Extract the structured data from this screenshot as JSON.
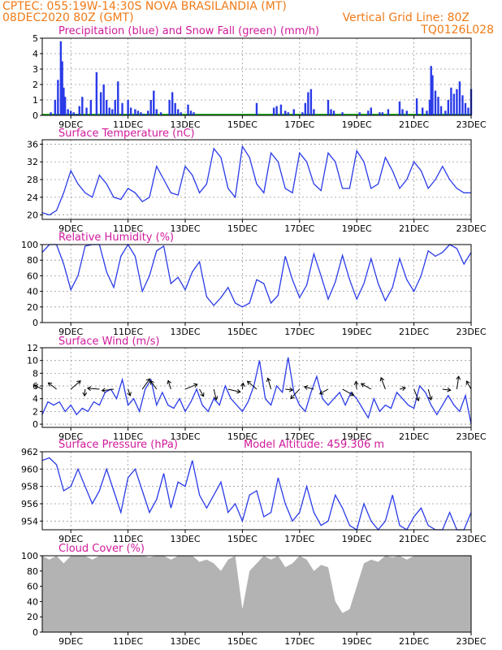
{
  "header": {
    "left_line1": "CPTEC:  055:19W-14:30S  NOVA BRASILANDIA (MT)",
    "left_line2": "08DEC2020 80Z (GMT)",
    "right_line1": "Vertical Grid Line: 80Z",
    "right_line2": "TQ0126L028"
  },
  "x_axis": {
    "ticks": [
      "9DEC",
      "11DEC",
      "13DEC",
      "15DEC",
      "17DEC",
      "19DEC",
      "21DEC",
      "23DEC"
    ]
  },
  "colors": {
    "header": "#f07b18",
    "titles": "#d01a9a",
    "line": "#2a3be8",
    "snow": "#22aa22",
    "cloud": "#b3b3b3"
  },
  "chart_data": [
    {
      "id": "precip",
      "type": "bar",
      "title": "Precipitation (blue) and Snow Fall (green) (mm/h)",
      "ylim": [
        0,
        5
      ],
      "yticks": [
        0,
        1,
        2,
        3,
        4,
        5
      ],
      "grid": true,
      "series": [
        {
          "x": [
            8.3,
            8.45,
            8.55,
            8.65,
            8.7,
            8.75,
            8.8,
            8.9,
            9.0,
            9.1,
            9.2,
            9.3,
            9.4,
            9.55,
            9.7,
            9.9,
            10.05,
            10.15,
            10.25,
            10.35,
            10.45,
            10.55,
            10.65,
            10.8,
            11.0,
            11.1,
            11.25,
            11.35,
            11.45,
            11.55,
            11.7,
            11.8,
            11.9,
            12.0,
            12.15,
            12.45,
            12.55,
            12.65,
            12.75,
            12.85,
            13.1,
            13.2,
            13.3,
            15.5,
            16.1,
            16.2,
            16.35,
            16.5,
            16.6,
            16.8,
            17.1,
            17.2,
            17.3,
            17.4,
            17.5,
            18.0,
            18.1,
            18.2,
            18.5,
            19.1,
            19.4,
            19.5,
            19.8,
            19.9,
            20.1,
            20.5,
            20.6,
            20.75,
            21.1,
            21.3,
            21.45,
            21.55,
            21.6,
            21.65,
            21.75,
            21.85,
            21.95,
            22.1,
            22.2,
            22.3,
            22.4,
            22.5,
            22.6,
            22.7,
            22.8,
            22.9,
            23.0
          ],
          "values": [
            0.2,
            1.0,
            2.3,
            4.8,
            3.5,
            1.8,
            1.2,
            0.4,
            0.3,
            0.2,
            0.1,
            0.6,
            1.2,
            0.5,
            1.0,
            2.8,
            1.5,
            2.0,
            1.0,
            0.5,
            0.4,
            1.0,
            2.2,
            0.8,
            1.0,
            0.5,
            0.4,
            0.3,
            0.2,
            0.1,
            0.3,
            1.0,
            1.6,
            0.4,
            0.2,
            1.0,
            1.5,
            0.8,
            0.4,
            0.2,
            0.7,
            0.3,
            0.2,
            0.8,
            0.5,
            0.6,
            0.7,
            0.3,
            0.2,
            0.4,
            0.2,
            0.8,
            1.5,
            1.7,
            0.4,
            1.0,
            0.4,
            0.3,
            0.2,
            0.2,
            0.3,
            0.5,
            0.2,
            0.2,
            0.4,
            0.9,
            0.4,
            0.3,
            1.1,
            0.5,
            0.3,
            1.0,
            3.2,
            2.6,
            1.6,
            1.2,
            0.6,
            0.3,
            1.0,
            1.8,
            1.4,
            1.7,
            2.2,
            1.3,
            0.8,
            0.5,
            1.7
          ]
        }
      ]
    },
    {
      "id": "temp",
      "type": "line",
      "title": "Surface Temperature (nC)",
      "ylim": [
        19,
        37
      ],
      "yticks": [
        20,
        24,
        28,
        32,
        36
      ],
      "grid": true,
      "x": [
        8.0,
        8.25,
        8.5,
        8.75,
        9.0,
        9.25,
        9.5,
        9.75,
        10.0,
        10.25,
        10.5,
        10.75,
        11.0,
        11.25,
        11.5,
        11.75,
        12.0,
        12.25,
        12.5,
        12.75,
        13.0,
        13.25,
        13.5,
        13.75,
        14.0,
        14.25,
        14.5,
        14.75,
        15.0,
        15.25,
        15.5,
        15.75,
        16.0,
        16.25,
        16.5,
        16.75,
        17.0,
        17.25,
        17.5,
        17.75,
        18.0,
        18.25,
        18.5,
        18.75,
        19.0,
        19.25,
        19.5,
        19.75,
        20.0,
        20.25,
        20.5,
        20.75,
        21.0,
        21.25,
        21.5,
        21.75,
        22.0,
        22.25,
        22.5,
        22.75,
        23.0
      ],
      "values": [
        20.5,
        20,
        21,
        25,
        30,
        27,
        25,
        24,
        29,
        27,
        24,
        23.5,
        26,
        25,
        23,
        24,
        31,
        28,
        25,
        24.5,
        31,
        29,
        25,
        27,
        35,
        33,
        26,
        24,
        35.5,
        33,
        27,
        25,
        34,
        32,
        26,
        25,
        34,
        32,
        27,
        25.5,
        34,
        32,
        26,
        26,
        34.5,
        32,
        26,
        27,
        33,
        30,
        26,
        28,
        32,
        30,
        26,
        28,
        31,
        28,
        26,
        25,
        25
      ]
    },
    {
      "id": "rh",
      "type": "line",
      "title": "Relative Humidity (%)",
      "ylim": [
        0,
        100
      ],
      "yticks": [
        0,
        20,
        40,
        60,
        80,
        100
      ],
      "grid": true,
      "x": [
        8.0,
        8.25,
        8.5,
        8.75,
        9.0,
        9.25,
        9.5,
        9.75,
        10.0,
        10.25,
        10.5,
        10.75,
        11.0,
        11.25,
        11.5,
        11.75,
        12.0,
        12.25,
        12.5,
        12.75,
        13.0,
        13.25,
        13.5,
        13.75,
        14.0,
        14.25,
        14.5,
        14.75,
        15.0,
        15.25,
        15.5,
        15.75,
        16.0,
        16.25,
        16.5,
        16.75,
        17.0,
        17.25,
        17.5,
        17.75,
        18.0,
        18.25,
        18.5,
        18.75,
        19.0,
        19.25,
        19.5,
        19.75,
        20.0,
        20.25,
        20.5,
        20.75,
        21.0,
        21.25,
        21.5,
        21.75,
        22.0,
        22.25,
        22.5,
        22.75,
        23.0
      ],
      "values": [
        90,
        100,
        100,
        75,
        42,
        60,
        98,
        100,
        100,
        65,
        45,
        85,
        100,
        85,
        40,
        60,
        92,
        98,
        50,
        58,
        42,
        65,
        78,
        33,
        22,
        32,
        45,
        25,
        20,
        25,
        55,
        50,
        25,
        35,
        85,
        55,
        32,
        48,
        88,
        60,
        30,
        52,
        86,
        55,
        30,
        50,
        82,
        50,
        28,
        45,
        82,
        55,
        40,
        60,
        92,
        85,
        90,
        100,
        95,
        75,
        90
      ]
    },
    {
      "id": "wind",
      "type": "line",
      "title": "Surface Wind (m/s)",
      "ylim": [
        -0.5,
        12
      ],
      "yticks": [
        0,
        2,
        4,
        6,
        8,
        10,
        12
      ],
      "grid": true,
      "x": [
        8.0,
        8.2,
        8.4,
        8.6,
        8.8,
        9.0,
        9.2,
        9.4,
        9.6,
        9.8,
        10.0,
        10.2,
        10.4,
        10.6,
        10.8,
        11.0,
        11.2,
        11.4,
        11.6,
        11.8,
        12.0,
        12.2,
        12.4,
        12.6,
        12.8,
        13.0,
        13.2,
        13.4,
        13.6,
        13.8,
        14.0,
        14.2,
        14.4,
        14.6,
        14.8,
        15.0,
        15.2,
        15.4,
        15.6,
        15.8,
        16.0,
        16.2,
        16.4,
        16.6,
        16.8,
        17.0,
        17.2,
        17.4,
        17.6,
        17.8,
        18.0,
        18.2,
        18.4,
        18.6,
        18.8,
        19.0,
        19.2,
        19.4,
        19.6,
        19.8,
        20.0,
        20.2,
        20.4,
        20.6,
        20.8,
        21.0,
        21.2,
        21.4,
        21.6,
        21.8,
        22.0,
        22.2,
        22.4,
        22.6,
        22.8,
        23.0
      ],
      "values": [
        1.5,
        3.5,
        3,
        3.5,
        2,
        3,
        1.5,
        2.5,
        2,
        3.5,
        3,
        5,
        5.5,
        4,
        7,
        3,
        4,
        2,
        5.5,
        7,
        3,
        5,
        3,
        2.5,
        4,
        2,
        3.5,
        5.5,
        3,
        2,
        4,
        3,
        6,
        4,
        3,
        2,
        3.5,
        6,
        10,
        4,
        3,
        6,
        5,
        10.5,
        5,
        3,
        2,
        5,
        7.5,
        4,
        3,
        4,
        5,
        3,
        5,
        4,
        2.5,
        1,
        4,
        2,
        3,
        2.5,
        5,
        4,
        3,
        2.5,
        6,
        5,
        3,
        1.5,
        3,
        4.5,
        3,
        2,
        4.5,
        0
      ]
    },
    {
      "id": "pressure",
      "type": "line",
      "title": "Surface Pressure (hPa)",
      "subtitle": "Model Altitude: 459.306 m",
      "ylim": [
        953,
        962
      ],
      "yticks": [
        954,
        956,
        958,
        960,
        962
      ],
      "grid": true,
      "x": [
        8.0,
        8.25,
        8.5,
        8.75,
        9.0,
        9.25,
        9.5,
        9.75,
        10.0,
        10.25,
        10.5,
        10.75,
        11.0,
        11.25,
        11.5,
        11.75,
        12.0,
        12.25,
        12.5,
        12.75,
        13.0,
        13.25,
        13.5,
        13.75,
        14.0,
        14.25,
        14.5,
        14.75,
        15.0,
        15.25,
        15.5,
        15.75,
        16.0,
        16.25,
        16.5,
        16.75,
        17.0,
        17.25,
        17.5,
        17.75,
        18.0,
        18.25,
        18.5,
        18.75,
        19.0,
        19.25,
        19.5,
        19.75,
        20.0,
        20.25,
        20.5,
        20.75,
        21.0,
        21.25,
        21.5,
        21.75,
        22.0,
        22.25,
        22.5,
        22.75,
        23.0
      ],
      "values": [
        961,
        961.3,
        960.5,
        957.5,
        958,
        960,
        958,
        956,
        957.5,
        960,
        957.5,
        955,
        959,
        960,
        957.5,
        955,
        956.5,
        959.5,
        955.5,
        958.5,
        958,
        961,
        957,
        955.5,
        957,
        958.5,
        955,
        956,
        954,
        957,
        957.5,
        954.5,
        955,
        959,
        956,
        954,
        955,
        958,
        955,
        953.5,
        954,
        957,
        955.5,
        953.5,
        952.5,
        956,
        954,
        952.5,
        954,
        957,
        953.5,
        952.5,
        954.5,
        955.5,
        953.5,
        952,
        953,
        955,
        953,
        952.5,
        955
      ]
    },
    {
      "id": "cloud",
      "type": "area",
      "title": "Cloud Cover (%)",
      "ylim": [
        0,
        100
      ],
      "yticks": [
        0,
        20,
        40,
        60,
        80,
        100
      ],
      "grid": false,
      "x": [
        8.0,
        8.25,
        8.5,
        8.75,
        9.0,
        9.25,
        9.5,
        9.75,
        10.0,
        10.25,
        10.5,
        10.75,
        11.0,
        11.25,
        11.5,
        11.75,
        12.0,
        12.25,
        12.5,
        12.75,
        13.0,
        13.25,
        13.5,
        13.75,
        14.0,
        14.25,
        14.5,
        14.75,
        15.0,
        15.25,
        15.5,
        15.75,
        16.0,
        16.25,
        16.5,
        16.75,
        17.0,
        17.25,
        17.5,
        17.75,
        18.0,
        18.25,
        18.5,
        18.75,
        19.0,
        19.25,
        19.5,
        19.75,
        20.0,
        20.25,
        20.5,
        20.75,
        21.0,
        21.25,
        21.5,
        21.75,
        22.0,
        22.25,
        22.5,
        22.75,
        23.0
      ],
      "values": [
        100,
        95,
        100,
        90,
        100,
        100,
        100,
        95,
        100,
        100,
        100,
        100,
        100,
        100,
        100,
        98,
        100,
        100,
        95,
        100,
        100,
        100,
        92,
        95,
        90,
        80,
        95,
        100,
        30,
        80,
        90,
        100,
        95,
        100,
        85,
        90,
        100,
        95,
        80,
        88,
        85,
        40,
        25,
        30,
        60,
        90,
        95,
        92,
        100,
        98,
        100,
        95,
        100,
        100,
        100,
        100,
        100,
        100,
        100,
        100,
        100
      ]
    }
  ]
}
